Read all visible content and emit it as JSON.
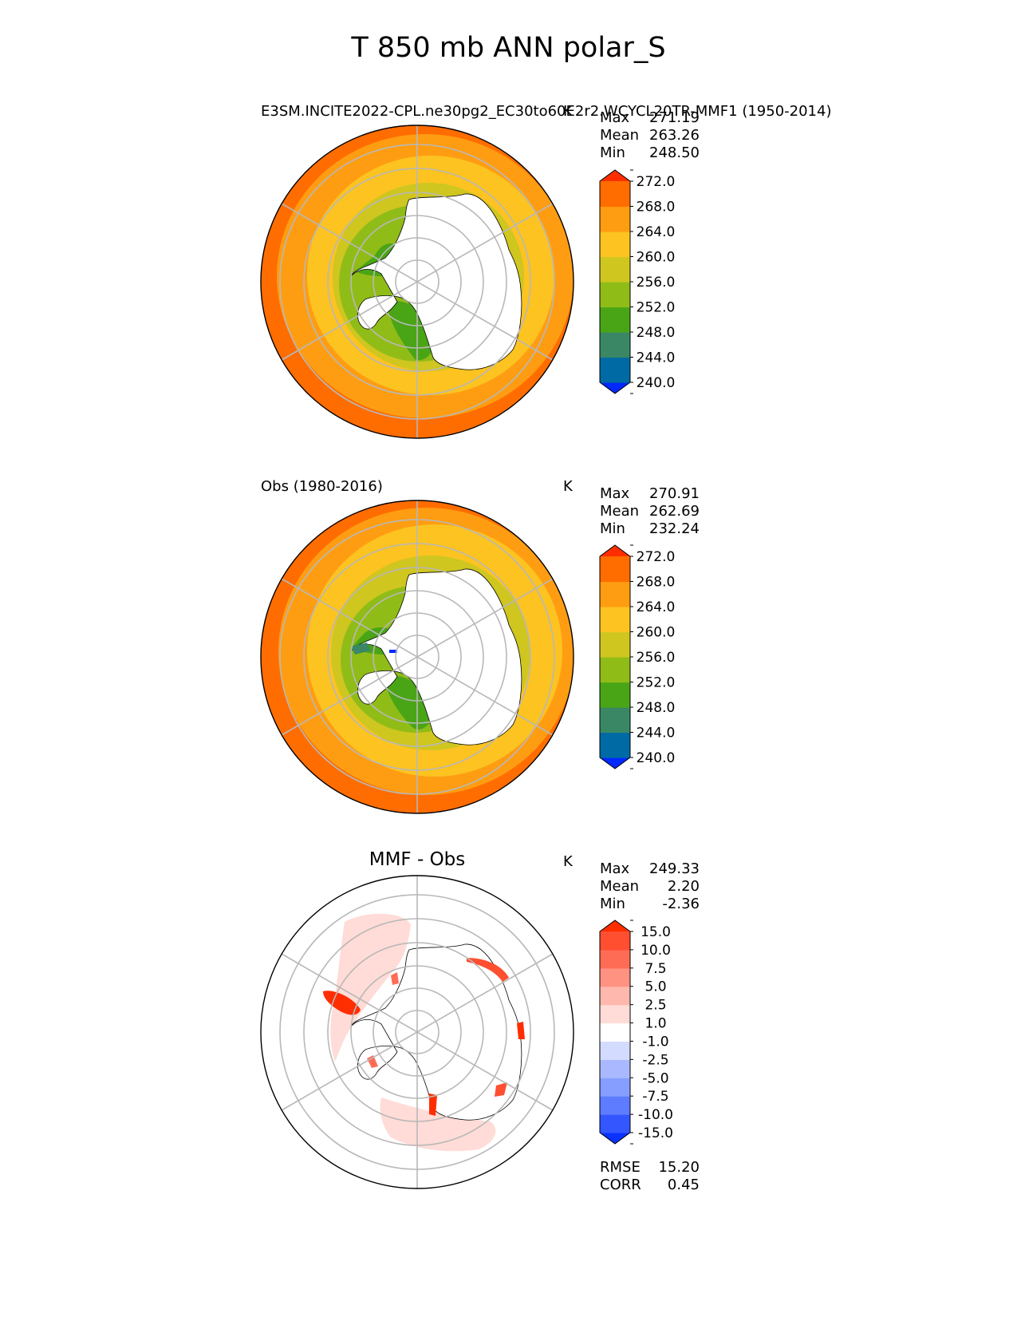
{
  "figure_title": "T 850 mb ANN polar_S",
  "palette_abs": {
    "colors": [
      "#0028ff",
      "#006aa4",
      "#3a8766",
      "#4aa516",
      "#90bc18",
      "#cfc620",
      "#fcc321",
      "#ff9d12",
      "#ff6d00",
      "#ff2e00"
    ],
    "labels": [
      "240.0",
      "244.0",
      "248.0",
      "252.0",
      "256.0",
      "260.0",
      "264.0",
      "268.0",
      "272.0"
    ]
  },
  "palette_diff": {
    "colors": [
      "#0a32ff",
      "#3456ff",
      "#5d7cff",
      "#859eff",
      "#aab9ff",
      "#d3dbff",
      "#ffffff",
      "#ffdcd7",
      "#ffb8ad",
      "#ff9281",
      "#ff6c55",
      "#ff4e30",
      "#ff2e00"
    ],
    "labels": [
      "-15.0",
      "-10.0",
      "-7.5",
      "-5.0",
      "-2.5",
      "-1.0",
      "1.0",
      "2.5",
      "5.0",
      "7.5",
      "10.0",
      "15.0"
    ]
  },
  "chart_data": [
    {
      "type": "heatmap",
      "projection": "south polar stereographic",
      "title": "E3SM.INCITE2022-CPL.ne30pg2_EC30to60E2r2.WCYCL20TR-MMF1 (1950-2014)",
      "units": "K",
      "stats": {
        "Max": "271.19",
        "Mean": "263.26",
        "Min": "248.50"
      },
      "colorbar_levels": [
        240.0,
        244.0,
        248.0,
        252.0,
        256.0,
        260.0,
        264.0,
        268.0,
        272.0
      ],
      "zonal_bands_outer_to_inner": [
        268.0,
        264.0,
        260.0,
        256.0
      ]
    },
    {
      "type": "heatmap",
      "projection": "south polar stereographic",
      "title": "Obs (1980-2016)",
      "units": "K",
      "stats": {
        "Max": "270.91",
        "Mean": "262.69",
        "Min": "232.24"
      },
      "colorbar_levels": [
        240.0,
        244.0,
        248.0,
        252.0,
        256.0,
        260.0,
        264.0,
        268.0,
        272.0
      ],
      "zonal_bands_outer_to_inner": [
        268.0,
        264.0,
        260.0,
        256.0
      ]
    },
    {
      "type": "heatmap",
      "projection": "south polar stereographic",
      "title": "MMF - Obs",
      "units": "K",
      "stats": {
        "Max": "249.33",
        "Mean": "2.20",
        "Min": "-2.36"
      },
      "metrics": {
        "RMSE": "15.20",
        "CORR": "0.45"
      },
      "colorbar_levels": [
        -15.0,
        -10.0,
        -7.5,
        -5.0,
        -2.5,
        -1.0,
        1.0,
        2.5,
        5.0,
        7.5,
        10.0,
        15.0
      ]
    }
  ]
}
